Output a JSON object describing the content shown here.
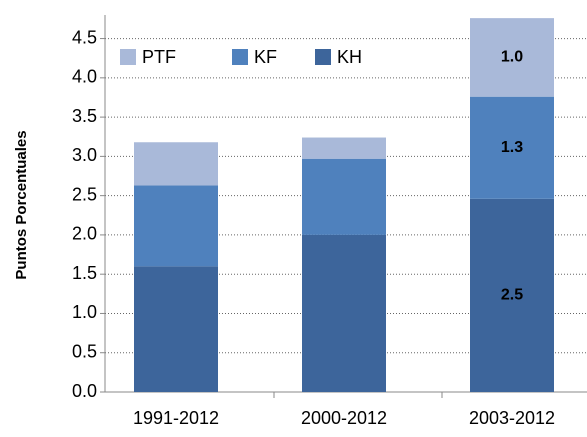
{
  "chart_data": {
    "type": "stacked_bar",
    "ylabel": "Puntos Porcentuales",
    "categories": [
      "1991-2012",
      "2000-2012",
      "2003-2012"
    ],
    "series": [
      {
        "name": "KH",
        "color": "#3d659b",
        "values": [
          1.6,
          2.0,
          2.46
        ],
        "value_labels": [
          null,
          null,
          "2.5"
        ]
      },
      {
        "name": "KF",
        "color": "#4f81bd",
        "values": [
          1.03,
          0.97,
          1.3
        ],
        "value_labels": [
          null,
          null,
          "1.3"
        ]
      },
      {
        "name": "PTF",
        "color": "#a9b9d9",
        "values": [
          0.55,
          0.27,
          1.0
        ],
        "value_labels": [
          null,
          null,
          "1.0"
        ]
      }
    ],
    "ylim": [
      0,
      4.8
    ],
    "yticks": [
      {
        "value": 0,
        "label": "0.0"
      },
      0.5,
      {
        "value": 1,
        "label": "1.0"
      },
      1.5,
      {
        "value": 2,
        "label": "2.0"
      },
      2.5,
      {
        "value": 3,
        "label": "3.0"
      },
      3.5,
      {
        "value": 4,
        "label": "4.0"
      },
      4.5
    ],
    "grid": true,
    "legend": "top-left"
  }
}
